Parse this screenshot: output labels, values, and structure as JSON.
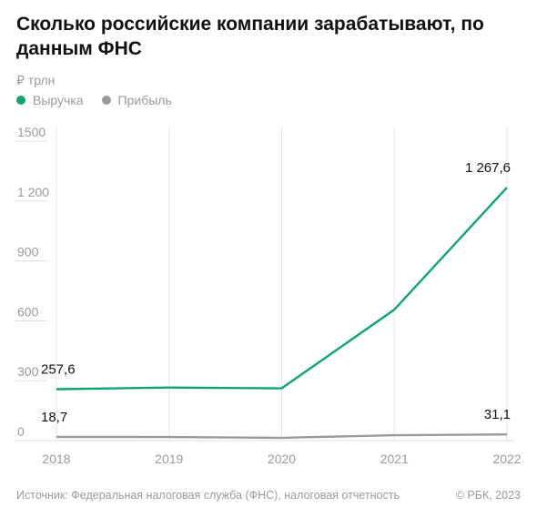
{
  "header": {
    "title": "Сколько российские компании зарабатывают, по данным ФНС",
    "unit": "₽ трлн"
  },
  "legend": [
    {
      "label": "Выручка",
      "color": "#12a272"
    },
    {
      "label": "Прибыль",
      "color": "#9a9a9a"
    }
  ],
  "footer": {
    "source": "Источник: Федеральная налоговая служба (ФНС), налоговая отчетность",
    "credit": "© РБК, 2023"
  },
  "chart_data": {
    "type": "line",
    "title": "Сколько российские компании зарабатывают, по данным ФНС",
    "ylabel": "₽ трлн",
    "xlabel": "",
    "x": [
      "2018",
      "2019",
      "2020",
      "2021",
      "2022"
    ],
    "ylim": [
      0,
      1500
    ],
    "yticks": [
      0,
      300,
      600,
      900,
      1200,
      1500
    ],
    "ytick_labels": [
      "0",
      "300",
      "600",
      "900",
      "1 200",
      "1500"
    ],
    "grid": "vertical",
    "legend_position": "top-left",
    "series": [
      {
        "name": "Выручка",
        "color": "#12a272",
        "values": [
          257.6,
          266,
          262,
          656,
          1267.6
        ],
        "labels": [
          {
            "index": 0,
            "text": "257,6"
          },
          {
            "index": 4,
            "text": "1 267,6"
          }
        ]
      },
      {
        "name": "Прибыль",
        "color": "#9a9a9a",
        "values": [
          18.7,
          18,
          14,
          27,
          31.1
        ],
        "labels": [
          {
            "index": 0,
            "text": "18,7"
          },
          {
            "index": 4,
            "text": "31,1"
          }
        ]
      }
    ]
  }
}
